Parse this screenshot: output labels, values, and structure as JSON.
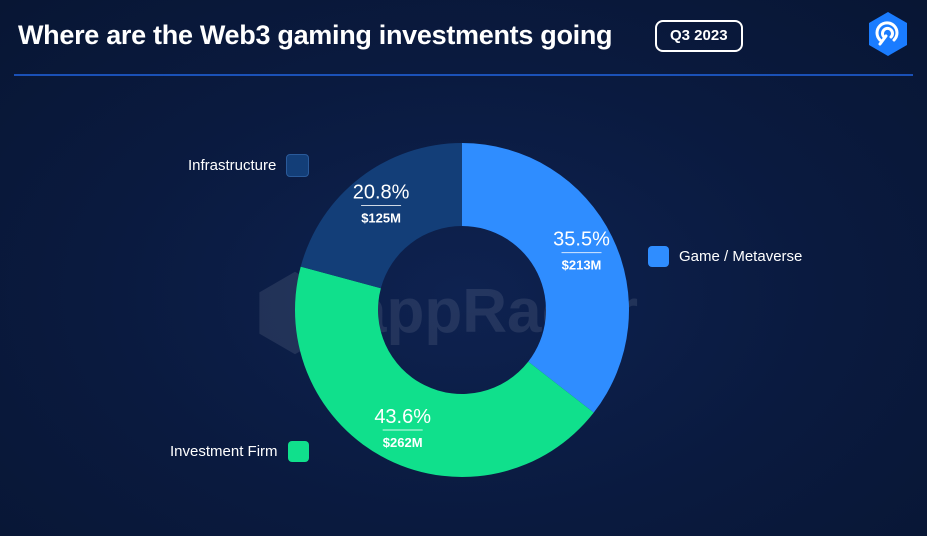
{
  "header": {
    "title": "Where are the Web3 gaming investments going",
    "period": "Q3 2023"
  },
  "watermark": {
    "text": "appRadar"
  },
  "colors": {
    "background": "#0a1a3f",
    "accent": "#1f5fd6",
    "game_metaverse": "#2f8dff",
    "investment_firm": "#10e08c",
    "infrastructure": "#133e78"
  },
  "chart_data": {
    "type": "pie",
    "donut": true,
    "title": "Where are the Web3 gaming investments going",
    "subtitle": "Q3 2023",
    "start": "top",
    "direction": "clockwise",
    "slices": [
      {
        "label": "Game / Metaverse",
        "percent": 35.5,
        "percent_label": "35.5%",
        "value_label": "$213M",
        "color": "#2f8dff"
      },
      {
        "label": "Investment Firm",
        "percent": 43.6,
        "percent_label": "43.6%",
        "value_label": "$262M",
        "color": "#10e08c"
      },
      {
        "label": "Infrastructure",
        "percent": 20.8,
        "percent_label": "20.8%",
        "value_label": "$125M",
        "color": "#133e78"
      }
    ],
    "legend": [
      {
        "label": "Game / Metaverse",
        "placement": "right"
      },
      {
        "label": "Investment Firm",
        "placement": "bottom-left"
      },
      {
        "label": "Infrastructure",
        "placement": "top-left"
      }
    ]
  }
}
